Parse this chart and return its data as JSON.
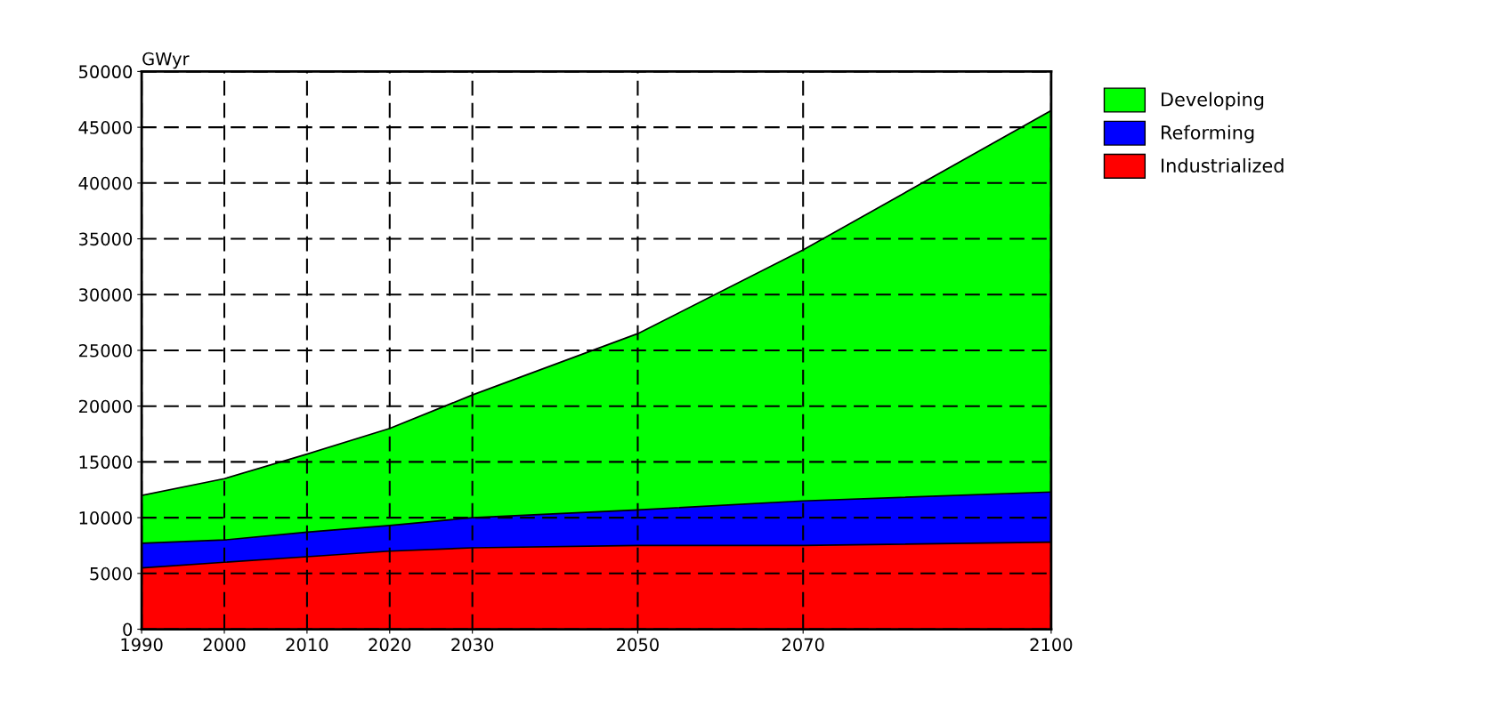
{
  "chart_data": {
    "type": "area",
    "stacked": true,
    "ylabel": "GWyr",
    "x": [
      1990,
      2000,
      2010,
      2020,
      2030,
      2050,
      2070,
      2100
    ],
    "series": [
      {
        "name": "Industrialized",
        "color": "#ff0000",
        "values": [
          5500,
          6000,
          6500,
          7000,
          7300,
          7500,
          7500,
          7800
        ]
      },
      {
        "name": "Reforming",
        "color": "#0000ff",
        "values": [
          2200,
          2000,
          2200,
          2300,
          2700,
          3200,
          4000,
          4500
        ]
      },
      {
        "name": "Developing",
        "color": "#00ff00",
        "values": [
          4300,
          5500,
          7000,
          8700,
          11000,
          15800,
          22500,
          34200
        ]
      }
    ],
    "xlim": [
      1990,
      2100
    ],
    "xticks": [
      1990,
      2000,
      2010,
      2020,
      2030,
      2050,
      2070,
      2100
    ],
    "ylim": [
      0,
      50000
    ],
    "yticks": [
      0,
      5000,
      10000,
      15000,
      20000,
      25000,
      30000,
      35000,
      40000,
      45000,
      50000
    ],
    "grid": true,
    "legend": "top right"
  }
}
